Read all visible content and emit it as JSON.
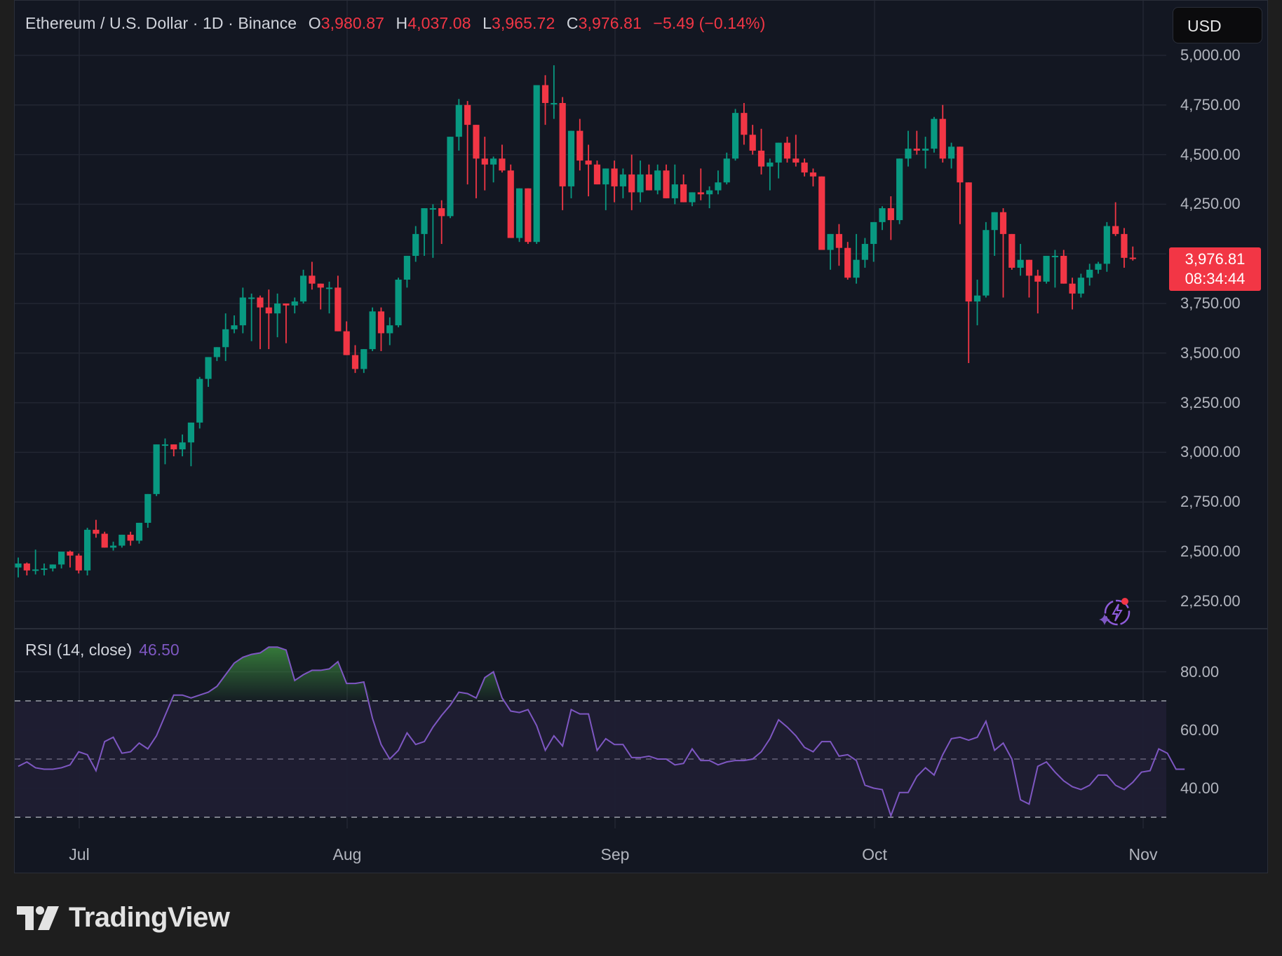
{
  "header": {
    "symbol_title": "Ethereum / U.S. Dollar · 1D · Binance",
    "ohlc": {
      "open_label": "O",
      "open": "3,980.87",
      "high_label": "H",
      "high": "4,037.08",
      "low_label": "L",
      "low": "3,965.72",
      "close_label": "C",
      "close": "3,976.81",
      "change": "−5.49 (−0.14%)"
    }
  },
  "currency_button": "USD",
  "last_price_badge": {
    "price": "3,976.81",
    "countdown": "08:34:44"
  },
  "rsi": {
    "label": "RSI (14, close)",
    "value": "46.50"
  },
  "price_axis": [
    "5,000.00",
    "4,750.00",
    "4,500.00",
    "4,250.00",
    "3,750.00",
    "3,500.00",
    "3,250.00",
    "3,000.00",
    "2,750.00",
    "2,500.00",
    "2,250.00"
  ],
  "rsi_axis": [
    "80.00",
    "60.00",
    "40.00"
  ],
  "time_axis": [
    "Jul",
    "Aug",
    "Sep",
    "Oct",
    "Nov"
  ],
  "branding": {
    "logo_text": "TradingView"
  },
  "colors": {
    "up": "#089981",
    "down": "#f23645",
    "rsi_line": "#7e57c2",
    "background": "#131722",
    "page": "#1e1e1e"
  },
  "chart_data": [
    {
      "type": "candlestick",
      "title": "Ethereum / U.S. Dollar · 1D · Binance",
      "start_date": "Jun 24",
      "end_date": "Oct 28",
      "ylim": [
        2150,
        5050
      ],
      "grid": true,
      "y_ticks": [
        2250,
        2500,
        2750,
        3000,
        3250,
        3500,
        3750,
        4000,
        4250,
        4500,
        4750,
        5000
      ],
      "x_ticks": [
        "Jul",
        "Aug",
        "Sep",
        "Oct",
        "Nov"
      ],
      "candles": [
        [
          2420,
          2470,
          2370,
          2440
        ],
        [
          2440,
          2445,
          2380,
          2405
        ],
        [
          2405,
          2510,
          2385,
          2410
        ],
        [
          2410,
          2440,
          2380,
          2415
        ],
        [
          2415,
          2435,
          2400,
          2435
        ],
        [
          2435,
          2500,
          2415,
          2500
        ],
        [
          2500,
          2505,
          2420,
          2480
        ],
        [
          2480,
          2490,
          2390,
          2405
        ],
        [
          2405,
          2620,
          2380,
          2610
        ],
        [
          2610,
          2660,
          2570,
          2590
        ],
        [
          2590,
          2600,
          2520,
          2520
        ],
        [
          2520,
          2550,
          2505,
          2530
        ],
        [
          2530,
          2580,
          2520,
          2585
        ],
        [
          2585,
          2600,
          2530,
          2555
        ],
        [
          2555,
          2640,
          2540,
          2645
        ],
        [
          2645,
          2780,
          2620,
          2790
        ],
        [
          2790,
          3010,
          2780,
          3040
        ],
        [
          3040,
          3070,
          2940,
          3040
        ],
        [
          3040,
          3000,
          2980,
          3015
        ],
        [
          3015,
          3090,
          2980,
          3050
        ],
        [
          3050,
          3130,
          2930,
          3150
        ],
        [
          3150,
          3380,
          3120,
          3370
        ],
        [
          3370,
          3430,
          3330,
          3480
        ],
        [
          3480,
          3520,
          3460,
          3530
        ],
        [
          3530,
          3700,
          3460,
          3620
        ],
        [
          3620,
          3690,
          3600,
          3640
        ],
        [
          3640,
          3830,
          3600,
          3780
        ],
        [
          3780,
          3800,
          3560,
          3780
        ],
        [
          3780,
          3790,
          3520,
          3730
        ],
        [
          3730,
          3820,
          3520,
          3700
        ],
        [
          3700,
          3800,
          3580,
          3750
        ],
        [
          3750,
          3720,
          3550,
          3740
        ],
        [
          3740,
          3780,
          3700,
          3760
        ],
        [
          3760,
          3920,
          3750,
          3890
        ],
        [
          3890,
          3960,
          3820,
          3850
        ],
        [
          3850,
          3830,
          3720,
          3830
        ],
        [
          3830,
          3860,
          3700,
          3830
        ],
        [
          3830,
          3890,
          3700,
          3610
        ],
        [
          3610,
          3660,
          3540,
          3490
        ],
        [
          3490,
          3540,
          3400,
          3420
        ],
        [
          3420,
          3470,
          3400,
          3520
        ],
        [
          3520,
          3730,
          3510,
          3710
        ],
        [
          3710,
          3730,
          3510,
          3600
        ],
        [
          3600,
          3680,
          3540,
          3640
        ],
        [
          3640,
          3880,
          3630,
          3870
        ],
        [
          3870,
          3950,
          3830,
          3990
        ],
        [
          3990,
          4140,
          3960,
          4100
        ],
        [
          4100,
          4200,
          3990,
          4230
        ],
        [
          4230,
          4250,
          3980,
          4230
        ],
        [
          4230,
          4270,
          4050,
          4190
        ],
        [
          4190,
          4390,
          4180,
          4590
        ],
        [
          4590,
          4780,
          4520,
          4750
        ],
        [
          4750,
          4770,
          4350,
          4650
        ],
        [
          4650,
          4550,
          4280,
          4480
        ],
        [
          4480,
          4590,
          4320,
          4450
        ],
        [
          4450,
          4490,
          4360,
          4480
        ],
        [
          4480,
          4550,
          4410,
          4420
        ],
        [
          4420,
          4450,
          4080,
          4080
        ],
        [
          4080,
          4250,
          4060,
          4330
        ],
        [
          4330,
          4290,
          4050,
          4060
        ],
        [
          4060,
          4330,
          4050,
          4850
        ],
        [
          4850,
          4900,
          4650,
          4760
        ],
        [
          4760,
          4950,
          4680,
          4760
        ],
        [
          4760,
          4790,
          4220,
          4340
        ],
        [
          4340,
          4620,
          4280,
          4620
        ],
        [
          4620,
          4680,
          4420,
          4470
        ],
        [
          4470,
          4550,
          4290,
          4450
        ],
        [
          4450,
          4470,
          4350,
          4350
        ],
        [
          4350,
          4380,
          4220,
          4430
        ],
        [
          4430,
          4470,
          4260,
          4340
        ],
        [
          4340,
          4430,
          4280,
          4400
        ],
        [
          4400,
          4500,
          4220,
          4310
        ],
        [
          4310,
          4470,
          4260,
          4400
        ],
        [
          4400,
          4450,
          4320,
          4320
        ],
        [
          4320,
          4450,
          4300,
          4420
        ],
        [
          4420,
          4450,
          4280,
          4280
        ],
        [
          4280,
          4450,
          4250,
          4350
        ],
        [
          4350,
          4400,
          4270,
          4260
        ],
        [
          4260,
          4300,
          4240,
          4310
        ],
        [
          4310,
          4430,
          4270,
          4300
        ],
        [
          4300,
          4340,
          4230,
          4320
        ],
        [
          4320,
          4420,
          4300,
          4360
        ],
        [
          4360,
          4510,
          4350,
          4480
        ],
        [
          4480,
          4730,
          4470,
          4710
        ],
        [
          4710,
          4760,
          4550,
          4600
        ],
        [
          4600,
          4650,
          4500,
          4520
        ],
        [
          4520,
          4630,
          4400,
          4440
        ],
        [
          4440,
          4480,
          4320,
          4460
        ],
        [
          4460,
          4550,
          4380,
          4560
        ],
        [
          4560,
          4590,
          4460,
          4480
        ],
        [
          4480,
          4600,
          4440,
          4460
        ],
        [
          4460,
          4480,
          4390,
          4410
        ],
        [
          4410,
          4430,
          4340,
          4390
        ],
        [
          4390,
          4390,
          4050,
          4020
        ],
        [
          4020,
          4050,
          3920,
          4100
        ],
        [
          4100,
          4150,
          3940,
          4030
        ],
        [
          4030,
          4060,
          3870,
          3880
        ],
        [
          3880,
          4100,
          3850,
          3970
        ],
        [
          3970,
          4080,
          3930,
          4050
        ],
        [
          4050,
          4120,
          3960,
          4160
        ],
        [
          4160,
          4240,
          4120,
          4230
        ],
        [
          4230,
          4290,
          4070,
          4170
        ],
        [
          4170,
          4380,
          4150,
          4480
        ],
        [
          4480,
          4620,
          4440,
          4530
        ],
        [
          4530,
          4620,
          4500,
          4520
        ],
        [
          4520,
          4590,
          4430,
          4530
        ],
        [
          4530,
          4690,
          4510,
          4680
        ],
        [
          4680,
          4750,
          4460,
          4480
        ],
        [
          4480,
          4560,
          4430,
          4540
        ],
        [
          4540,
          4380,
          4150,
          4360
        ],
        [
          4360,
          4300,
          3450,
          3760
        ],
        [
          3760,
          3870,
          3640,
          3790
        ],
        [
          3790,
          4160,
          3780,
          4120
        ],
        [
          4120,
          4210,
          3990,
          4210
        ],
        [
          4210,
          4230,
          3780,
          4100
        ],
        [
          4100,
          4100,
          3920,
          3930
        ],
        [
          3930,
          4050,
          3890,
          3970
        ],
        [
          3970,
          3960,
          3780,
          3890
        ],
        [
          3890,
          3920,
          3700,
          3860
        ],
        [
          3860,
          3980,
          3850,
          3990
        ],
        [
          3990,
          4020,
          3830,
          3990
        ],
        [
          3990,
          4020,
          3920,
          3850
        ],
        [
          3850,
          3880,
          3720,
          3800
        ],
        [
          3800,
          3900,
          3780,
          3880
        ],
        [
          3880,
          3950,
          3840,
          3920
        ],
        [
          3920,
          3960,
          3900,
          3950
        ],
        [
          3950,
          4160,
          3910,
          4140
        ],
        [
          4140,
          4260,
          4090,
          4100
        ],
        [
          4100,
          4130,
          3930,
          3980
        ],
        [
          3981,
          4037,
          3966,
          3977
        ]
      ]
    },
    {
      "type": "line",
      "title": "RSI (14, close)",
      "ylim": [
        28,
        92
      ],
      "bands": {
        "upper": 70,
        "middle": 50,
        "lower": 30
      },
      "y_ticks": [
        40,
        60,
        80
      ],
      "current_value": 46.5,
      "values": [
        47.5,
        49,
        47,
        46.5,
        46.5,
        47,
        48,
        52.5,
        51.5,
        46,
        56,
        57.5,
        52,
        52.5,
        55.5,
        53.5,
        58,
        65,
        72,
        72,
        71,
        72,
        73,
        75,
        79,
        83,
        85,
        86,
        86.5,
        88.5,
        88.5,
        87.5,
        77,
        79,
        80.5,
        80.5,
        81,
        83.5,
        76,
        76,
        76.5,
        64,
        55,
        50,
        53,
        59,
        55,
        56,
        61,
        65,
        68.5,
        73,
        72.5,
        71,
        78,
        80,
        71,
        66.5,
        66,
        67,
        61.5,
        53,
        58,
        54.5,
        67,
        65.5,
        65.5,
        53,
        57,
        55,
        55,
        50.5,
        50.5,
        51,
        50,
        50,
        48,
        48.5,
        53.5,
        49.5,
        49.5,
        48,
        49,
        49.5,
        49.5,
        50,
        52.5,
        57,
        63.5,
        61,
        58,
        54,
        52.5,
        56,
        56,
        51,
        51.5,
        49.5,
        41,
        40,
        39.5,
        30.5,
        38.5,
        38.5,
        44,
        47,
        44.5,
        51.5,
        57,
        57.5,
        56.5,
        57.5,
        63,
        53,
        55.5,
        50,
        36,
        34.5,
        47.5,
        49,
        45.5,
        42.5,
        40.5,
        39.5,
        41,
        44.5,
        44.5,
        41,
        39.5,
        42,
        45.5,
        46,
        53.5,
        52,
        46.5,
        46.5
      ]
    }
  ]
}
